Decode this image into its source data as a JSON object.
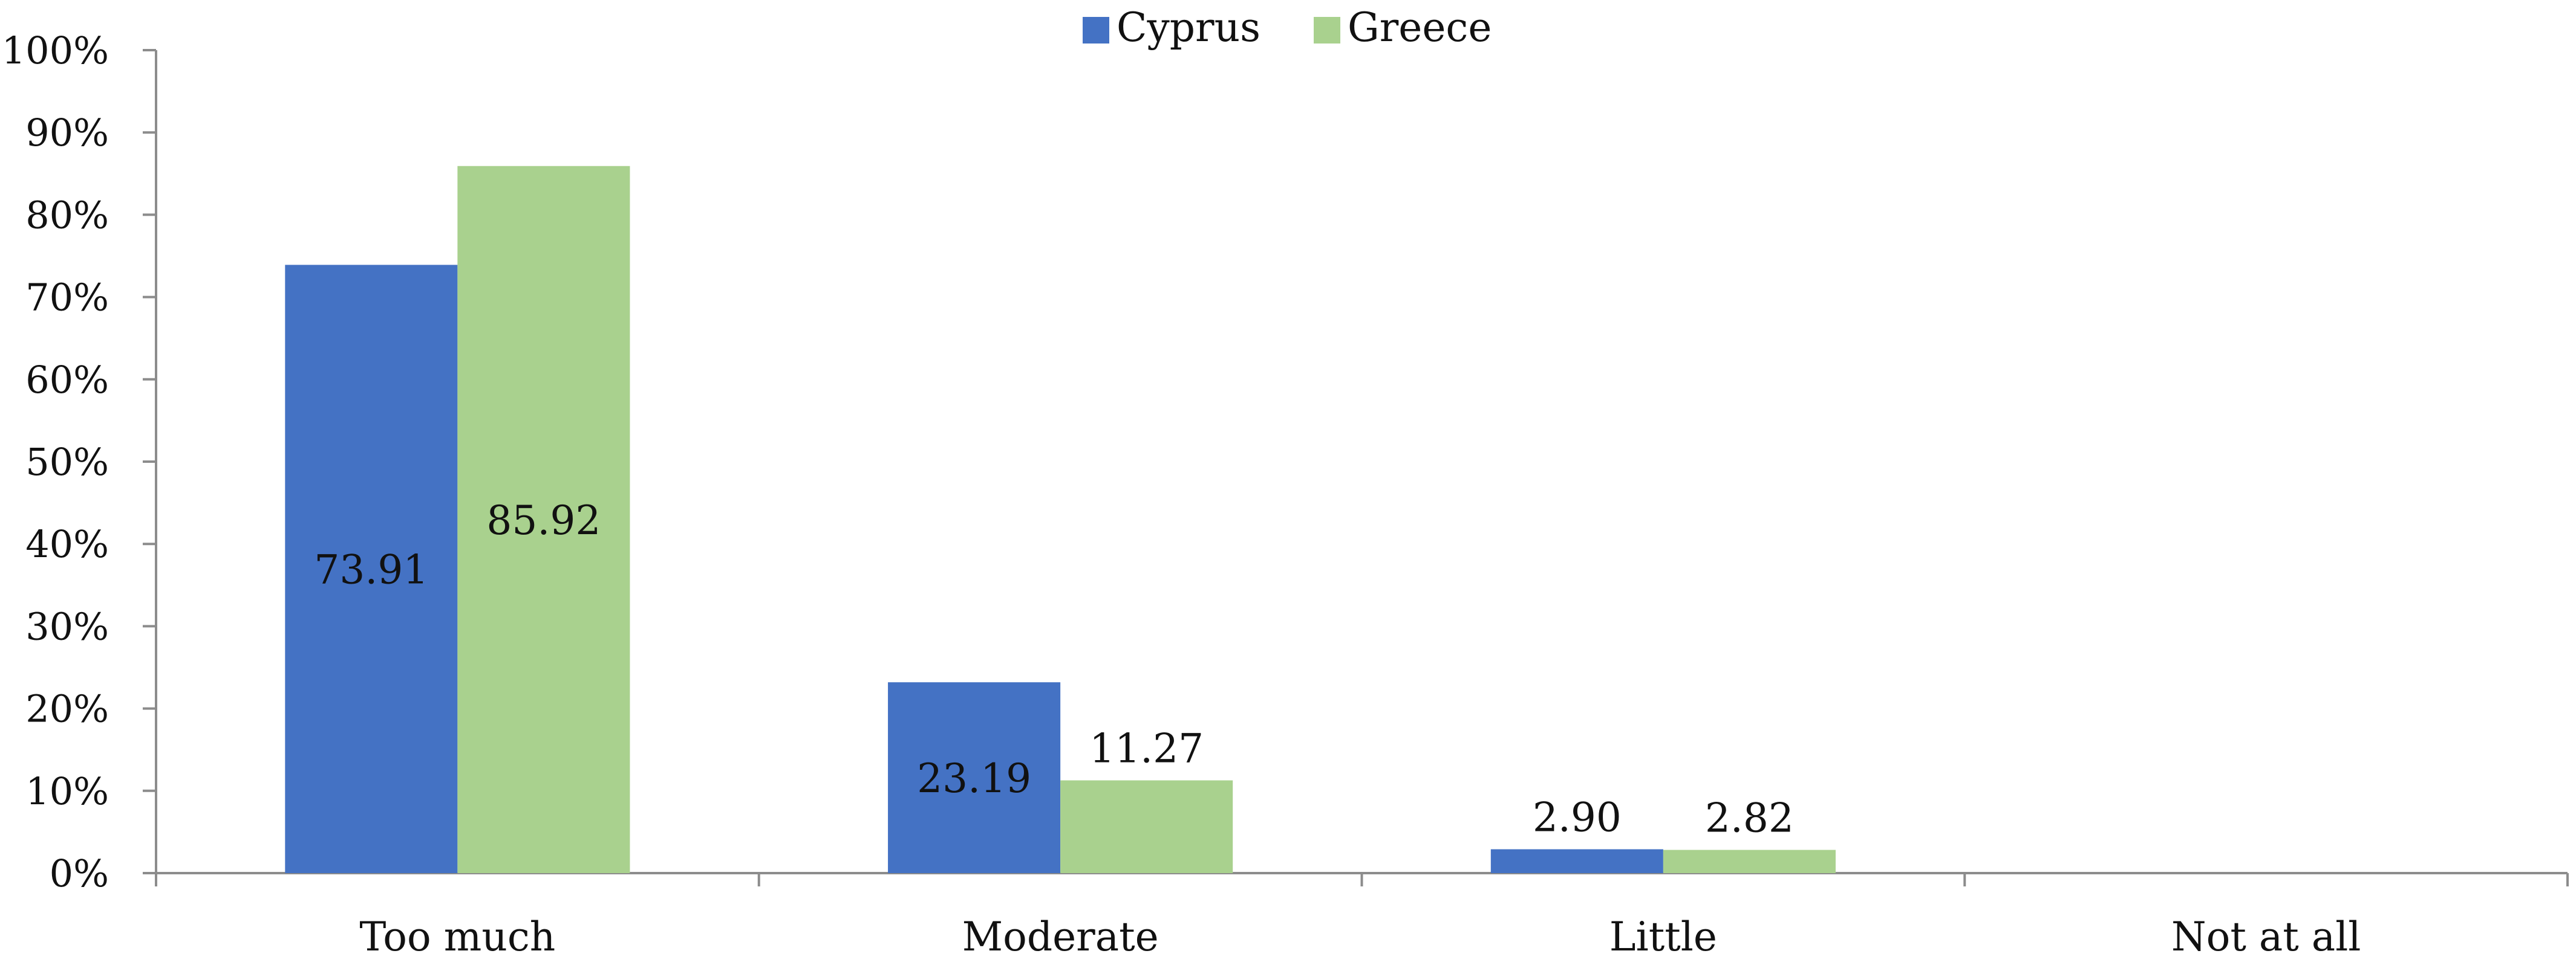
{
  "chart_data": {
    "type": "bar",
    "categories": [
      "Too much",
      "Moderate",
      "Little",
      "Not at all"
    ],
    "series": [
      {
        "name": "Cyprus",
        "values": [
          73.91,
          23.19,
          2.9,
          0
        ],
        "labels": [
          "73.91",
          "23.19",
          "2.90",
          ""
        ],
        "color": "#4472C4"
      },
      {
        "name": "Greece",
        "values": [
          85.92,
          11.27,
          2.82,
          0
        ],
        "labels": [
          "85.92",
          "11.27",
          "2.82",
          ""
        ],
        "color": "#A9D18E"
      }
    ],
    "y_ticks": [
      "0%",
      "10%",
      "20%",
      "30%",
      "40%",
      "50%",
      "60%",
      "70%",
      "80%",
      "90%",
      "100%"
    ],
    "ylim": [
      0,
      100
    ],
    "grid": false,
    "legend_position": "top-center"
  }
}
